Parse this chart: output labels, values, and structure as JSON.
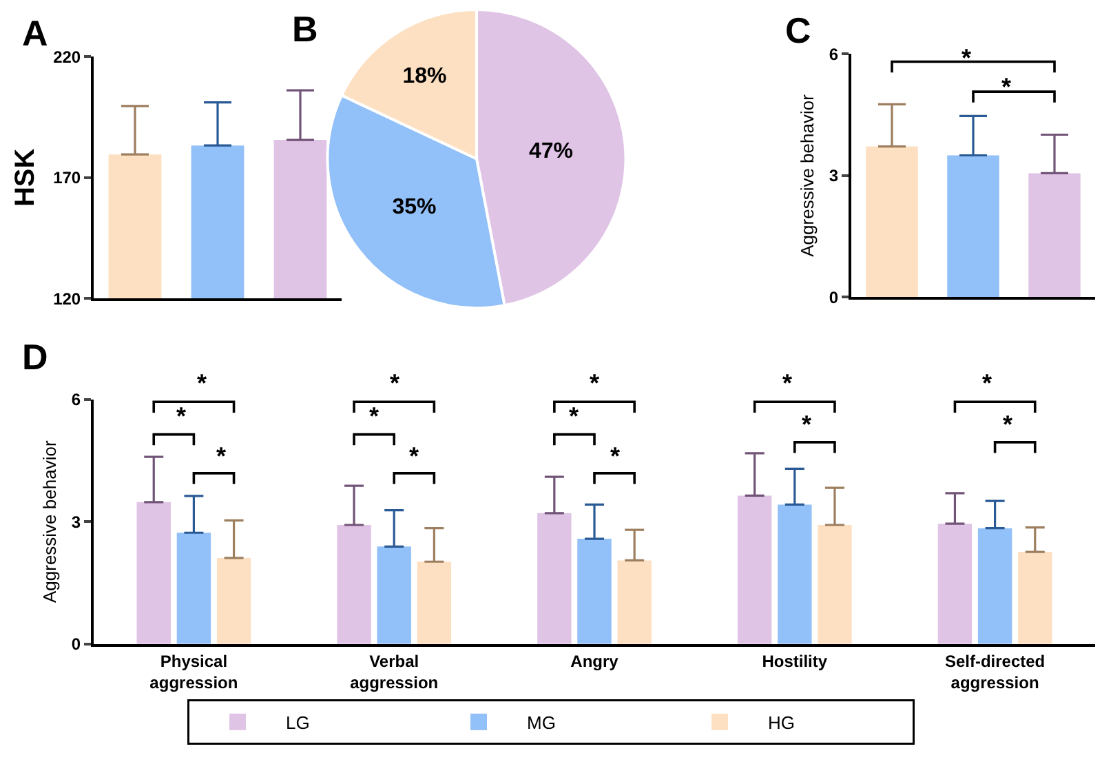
{
  "chart_data": [
    {
      "type": "bar",
      "title": "A",
      "ylabel": "HSK",
      "categories": [
        null,
        null,
        null
      ],
      "values": [
        179.6,
        183.3,
        185.6
      ],
      "colors": [
        "#fde0c2",
        "#92c0f8",
        "#e0c4e6"
      ],
      "errors": [
        [
          179.6,
          199.6
        ],
        [
          183.3,
          201.1
        ],
        [
          185.6,
          206.1
        ]
      ],
      "ylim": [
        120,
        220
      ],
      "yticks": [
        120,
        170,
        220
      ],
      "legend": false,
      "tick_labels": "y"
    },
    {
      "type": "pie",
      "title": "B",
      "categories": [
        null,
        null,
        null
      ],
      "values": [
        47,
        35,
        18
      ],
      "colors": [
        "#e0c4e6",
        "#92c0f8",
        "#fde0c2"
      ],
      "value_labels": [
        "47%",
        "35%",
        "18%"
      ],
      "legend": false
    },
    {
      "type": "bar",
      "title": "C",
      "ylabel": "Aggressive behavior",
      "categories": [
        null,
        null,
        null
      ],
      "values": [
        3.72,
        3.5,
        3.06
      ],
      "colors": [
        "#fde0c2",
        "#92c0f8",
        "#e0c4e6"
      ],
      "errors": [
        [
          3.72,
          4.76
        ],
        [
          3.5,
          4.47
        ],
        [
          3.06,
          4.01
        ]
      ],
      "ylim": [
        0,
        6
      ],
      "yticks": [
        0,
        3,
        6
      ],
      "legend": false,
      "tick_labels": "y",
      "annotations": [
        "*",
        "*"
      ]
    },
    {
      "type": "bar",
      "title": "D",
      "ylabel": "Aggressive behavior",
      "categories": [
        "Physical aggression",
        "Verbal aggression",
        "Angry",
        "Hostility",
        "Self-directed aggression"
      ],
      "series": [
        {
          "name": "LG",
          "color": "#e0c4e6",
          "values": [
            3.48,
            2.92,
            3.21,
            3.64,
            2.95
          ],
          "errors": [
            [
              3.48,
              4.59
            ],
            [
              2.92,
              3.88
            ],
            [
              3.21,
              4.1
            ],
            [
              3.64,
              4.68
            ],
            [
              2.95,
              3.7
            ]
          ]
        },
        {
          "name": "MG",
          "color": "#92c0f8",
          "values": [
            2.73,
            2.39,
            2.58,
            3.42,
            2.84
          ],
          "errors": [
            [
              2.73,
              3.63
            ],
            [
              2.39,
              3.28
            ],
            [
              2.58,
              3.42
            ],
            [
              3.42,
              4.3
            ],
            [
              2.84,
              3.51
            ]
          ]
        },
        {
          "name": "HG",
          "color": "#fde0c2",
          "values": [
            2.11,
            2.02,
            2.05,
            2.92,
            2.26
          ],
          "errors": [
            [
              2.11,
              3.03
            ],
            [
              2.02,
              2.84
            ],
            [
              2.05,
              2.8
            ],
            [
              2.92,
              3.83
            ],
            [
              2.26,
              2.86
            ]
          ]
        }
      ],
      "ylim": [
        0,
        6
      ],
      "yticks": [
        0,
        3,
        6
      ],
      "legend": "bottom",
      "annotations": [
        "*",
        "*",
        "*",
        "*",
        "*",
        "*",
        "*",
        "*",
        "*",
        "*",
        "*",
        "*",
        "*"
      ]
    }
  ]
}
